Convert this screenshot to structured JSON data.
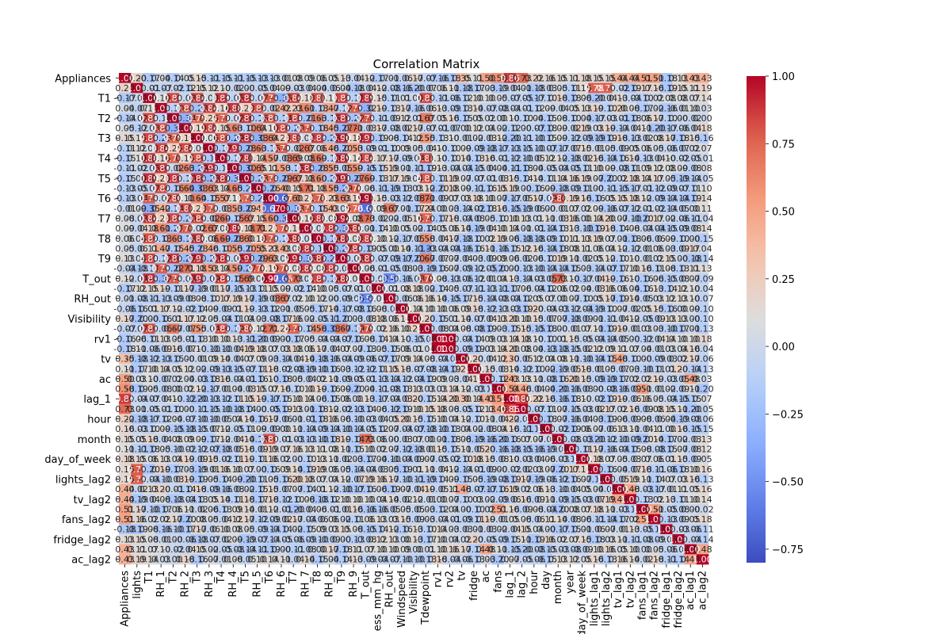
{
  "chart_data": {
    "type": "heatmap",
    "title": "Correlation Matrix",
    "xlabel": "",
    "ylabel": "",
    "variables": [
      "Appliances",
      "lights",
      "T1",
      "RH_1",
      "T2",
      "RH_2",
      "T3",
      "RH_3",
      "T4",
      "RH_4",
      "T5",
      "RH_5",
      "T6",
      "RH_6",
      "T7",
      "RH_7",
      "T8",
      "RH_8",
      "T9",
      "RH_9",
      "T_out",
      "Press_mm_hg",
      "RH_out",
      "Windspeed",
      "Visibility",
      "Tdewpoint",
      "rv1",
      "rv2",
      "tv",
      "fridge",
      "ac",
      "fans",
      "lag_1",
      "lag_2",
      "hour",
      "day",
      "month",
      "year",
      "day_of_week",
      "lights_lag1",
      "lights_lag2",
      "tv_lag1",
      "tv_lag2",
      "fans_lag1",
      "fans_lag2",
      "fridge_lag1",
      "fridge_lag2",
      "ac_lag1",
      "ac_lag2"
    ],
    "x_tick_labels": [
      "Appliances",
      "lights",
      "T1",
      "RH_1",
      "T2",
      "RH_2",
      "T3",
      "RH_3",
      "T4",
      "RH_4",
      "T5",
      "RH_5",
      "T6",
      "RH_6",
      "T7",
      "RH_7",
      "T8",
      "RH_8",
      "T9",
      "RH_9",
      "T_out",
      "ess_mm_hg",
      "RH_out",
      "Windspeed",
      "Visibility",
      "Tdewpoint",
      "rv1",
      "rv2",
      "tv",
      "fridge",
      "ac",
      "fans",
      "lag_1",
      "lag_2",
      "hour",
      "day",
      "month",
      "year",
      "day_of_week",
      "lights_lag1",
      "lights_lag2",
      "tv_lag1",
      "tv_lag2",
      "fans_lag1",
      "fans_lag2",
      "fridge_lag1",
      "fridge_lag2",
      "ac_lag1",
      "ac_lag2"
    ],
    "y_tick_labels": [
      "Appliances",
      "",
      "T1",
      "",
      "T2",
      "",
      "T3",
      "",
      "T4",
      "",
      "T5",
      "",
      "T6",
      "",
      "T7",
      "",
      "T8",
      "",
      "T9",
      "",
      "T_out",
      "",
      "RH_out",
      "",
      "Visibility",
      "",
      "rv1",
      "",
      "tv",
      "",
      "ac",
      "",
      "lag_1",
      "",
      "hour",
      "",
      "month",
      "",
      "day_of_week",
      "",
      "lights_lag2",
      "",
      "tv_lag2",
      "",
      "fans_lag2",
      "",
      "fridge_lag2",
      "",
      "ac_lag2"
    ],
    "colorbar": {
      "colormap": "coolwarm",
      "vmin": -0.8,
      "vmax": 1.0,
      "ticks": [
        1.0,
        0.75,
        0.5,
        0.25,
        0.0,
        -0.25,
        -0.5,
        -0.75
      ],
      "tick_labels": [
        "1.00",
        "0.75",
        "0.50",
        "0.25",
        "0.00",
        "−0.25",
        "−0.50",
        "−0.75"
      ]
    },
    "annotated": true,
    "annotation_decimals": 2,
    "known_correlations": [
      {
        "a": "Appliances",
        "b": "lag_1",
        "value": 0.86
      },
      {
        "a": "Appliances",
        "b": "lag_2",
        "value": 0.73
      },
      {
        "a": "Appliances",
        "b": "lights",
        "value": 0.2
      },
      {
        "a": "Appliances",
        "b": "tv",
        "value": 0.35
      },
      {
        "a": "Appliances",
        "b": "fans",
        "value": 0.58
      },
      {
        "a": "Appliances",
        "b": "ac",
        "value": 0.5
      },
      {
        "a": "Appliances",
        "b": "hour",
        "value": 0.22
      },
      {
        "a": "Appliances",
        "b": "tv_lag1",
        "value": 0.44
      },
      {
        "a": "Appliances",
        "b": "tv_lag2",
        "value": 0.44
      },
      {
        "a": "Appliances",
        "b": "fans_lag1",
        "value": 0.51
      },
      {
        "a": "Appliances",
        "b": "fans_lag2",
        "value": 0.51
      },
      {
        "a": "Appliances",
        "b": "ac_lag1",
        "value": 0.43
      },
      {
        "a": "Appliances",
        "b": "ac_lag2",
        "value": 0.43
      },
      {
        "a": "Appliances",
        "b": "lights_lag1",
        "value": 0.15
      },
      {
        "a": "Appliances",
        "b": "lights_lag2",
        "value": 0.15
      },
      {
        "a": "lights",
        "b": "lights_lag1",
        "value": 0.78
      },
      {
        "a": "lights",
        "b": "lights_lag2",
        "value": 0.78
      },
      {
        "a": "lag_1",
        "b": "lag_2",
        "value": 0.86
      },
      {
        "a": "rv1",
        "b": "rv2",
        "value": 1.0
      },
      {
        "a": "T1",
        "b": "T3",
        "value": 0.84
      },
      {
        "a": "T1",
        "b": "T4",
        "value": 0.88
      },
      {
        "a": "T1",
        "b": "T5",
        "value": 0.89
      },
      {
        "a": "T1",
        "b": "T7",
        "value": 0.84
      },
      {
        "a": "T1",
        "b": "T8",
        "value": 0.82
      },
      {
        "a": "T1",
        "b": "T9",
        "value": 0.84
      },
      {
        "a": "T1",
        "b": "T2",
        "value": 0.84
      },
      {
        "a": "T2",
        "b": "T6",
        "value": 0.8
      },
      {
        "a": "T2",
        "b": "T_out",
        "value": 0.79
      },
      {
        "a": "T3",
        "b": "T5",
        "value": 0.89
      },
      {
        "a": "T3",
        "b": "T9",
        "value": 0.9
      },
      {
        "a": "T4",
        "b": "T5",
        "value": 0.87
      },
      {
        "a": "T4",
        "b": "T9",
        "value": 0.89
      },
      {
        "a": "T5",
        "b": "T9",
        "value": 0.91
      },
      {
        "a": "T6",
        "b": "T_out",
        "value": 0.97
      },
      {
        "a": "T7",
        "b": "T8",
        "value": 0.88
      },
      {
        "a": "T7",
        "b": "T9",
        "value": 0.94
      },
      {
        "a": "T8",
        "b": "T9",
        "value": 0.87
      },
      {
        "a": "RH_1",
        "b": "RH_2",
        "value": 0.8
      },
      {
        "a": "RH_1",
        "b": "RH_3",
        "value": 0.84
      },
      {
        "a": "RH_1",
        "b": "RH_4",
        "value": 0.88
      },
      {
        "a": "RH_3",
        "b": "RH_4",
        "value": 0.9
      },
      {
        "a": "RH_4",
        "b": "RH_7",
        "value": 0.89
      },
      {
        "a": "RH_7",
        "b": "RH_8",
        "value": 0.88
      },
      {
        "a": "RH_7",
        "b": "RH_9",
        "value": 0.86
      },
      {
        "a": "RH_8",
        "b": "RH_9",
        "value": 0.86
      },
      {
        "a": "RH_6",
        "b": "T6",
        "value": -0.67
      },
      {
        "a": "RH_6",
        "b": "T_out",
        "value": -0.66
      },
      {
        "a": "RH_6",
        "b": "RH_out",
        "value": 0.67
      },
      {
        "a": "T_out",
        "b": "RH_out",
        "value": -0.57
      },
      {
        "a": "T_out",
        "b": "Tdewpoint",
        "value": 0.79
      },
      {
        "a": "T6",
        "b": "month",
        "value": 0.81
      },
      {
        "a": "T_out",
        "b": "month",
        "value": 0.73
      },
      {
        "a": "tv",
        "b": "tv_lag1",
        "value": 0.48
      },
      {
        "a": "tv_lag1",
        "b": "tv_lag2",
        "value": 0.48
      },
      {
        "a": "fans",
        "b": "fans_lag1",
        "value": 0.51
      },
      {
        "a": "fans_lag1",
        "b": "fans_lag2",
        "value": 0.51
      },
      {
        "a": "ac",
        "b": "ac_lag1",
        "value": 0.48
      },
      {
        "a": "ac_lag1",
        "b": "ac_lag2",
        "value": 0.48
      },
      {
        "a": "fans",
        "b": "lag_1",
        "value": 0.54
      },
      {
        "a": "fans",
        "b": "lag_2",
        "value": 0.46
      },
      {
        "a": "ac",
        "b": "lag_1",
        "value": 0.43
      },
      {
        "a": "tv",
        "b": "lag_1",
        "value": 0.3
      },
      {
        "a": "hour",
        "b": "lag_1",
        "value": 0.22
      },
      {
        "a": "month",
        "b": "day",
        "value": -0.02
      }
    ]
  }
}
